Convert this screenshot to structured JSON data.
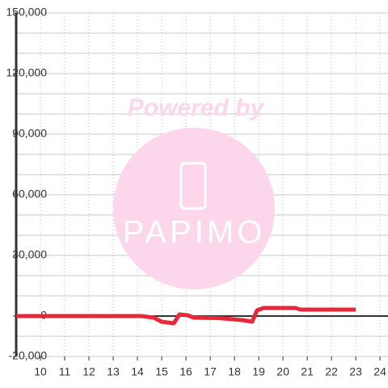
{
  "chart_data": {
    "type": "line",
    "watermark": "Powered by",
    "watermark_logo": "PAPIMO",
    "x": [
      9,
      14.17,
      14.67,
      15,
      15.5,
      15.73,
      16.07,
      16.33,
      17.33,
      18.33,
      18.73,
      18.93,
      19.2,
      20.5,
      20.73,
      23
    ],
    "series": [
      {
        "color": "#e8283a",
        "values": [
          0,
          0,
          -800,
          -2800,
          -3600,
          800,
          400,
          -800,
          -1000,
          -2000,
          -2800,
          2800,
          4000,
          4000,
          3200,
          3200
        ]
      }
    ],
    "xlim": [
      9,
      24.33
    ],
    "xticks": [
      10,
      11,
      12,
      13,
      14,
      15,
      16,
      17,
      18,
      19,
      20,
      21,
      22,
      23,
      24
    ],
    "ylim": [
      -20000,
      150000
    ],
    "yticks": [
      {
        "value": -20000,
        "label": "-20,000"
      },
      {
        "value": 0,
        "label": "0"
      },
      {
        "value": 30000,
        "label": "30,000"
      },
      {
        "value": 60000,
        "label": "60,000"
      },
      {
        "value": 90000,
        "label": "90,000"
      },
      {
        "value": 120000,
        "label": "120,000"
      },
      {
        "value": 150000,
        "label": "150,000"
      }
    ],
    "minor_ystep": 10000,
    "grid": true
  }
}
